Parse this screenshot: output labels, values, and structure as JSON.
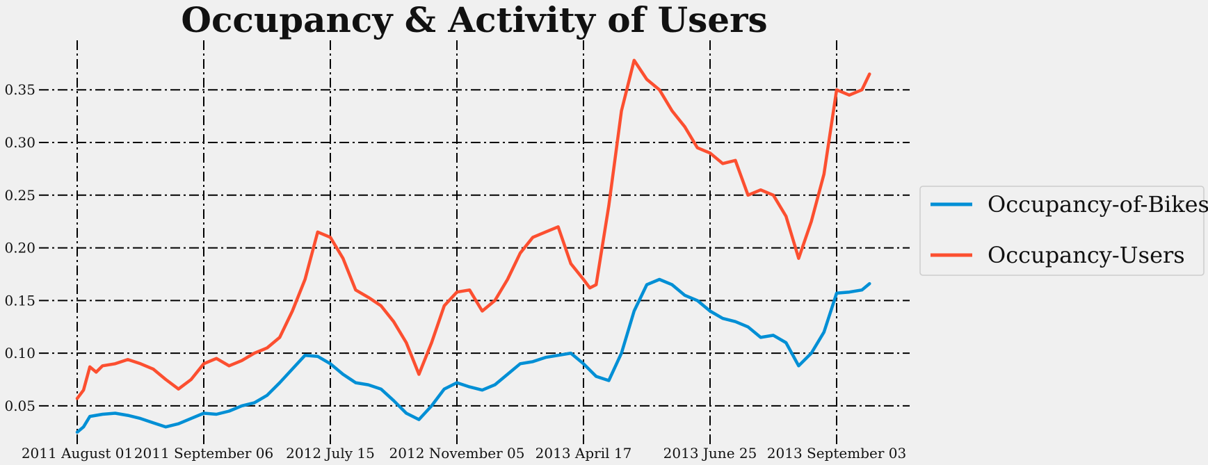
{
  "chart_data": {
    "type": "line",
    "title": "Occupancy & Activity of Users",
    "xlabel": "",
    "ylabel": "",
    "x_ticks": [
      "2011 August 01",
      "2011 September 06",
      "2012 July 15",
      "2012 November 05",
      "2013 April 17",
      "2013 June 25",
      "2013 September 03"
    ],
    "x_range": [
      0,
      6.26
    ],
    "ylim": [
      0.013,
      0.397
    ],
    "y_ticks": [
      0.05,
      0.1,
      0.15,
      0.2,
      0.25,
      0.3,
      0.35
    ],
    "y_tick_labels": [
      "0.05",
      "0.10",
      "0.15",
      "0.20",
      "0.25",
      "0.30",
      "0.35"
    ],
    "grid": true,
    "legend_position": "right",
    "series": [
      {
        "name": "Occupancy-of-Bikes",
        "color": "#008fd5",
        "x": [
          0,
          0.05,
          0.1,
          0.2,
          0.3,
          0.4,
          0.5,
          0.6,
          0.7,
          0.8,
          0.9,
          1.0,
          1.1,
          1.2,
          1.3,
          1.4,
          1.5,
          1.6,
          1.7,
          1.8,
          1.9,
          2.0,
          2.1,
          2.2,
          2.3,
          2.4,
          2.5,
          2.6,
          2.7,
          2.8,
          2.9,
          3.0,
          3.1,
          3.2,
          3.3,
          3.4,
          3.5,
          3.6,
          3.7,
          3.8,
          3.9,
          4.0,
          4.1,
          4.2,
          4.3,
          4.4,
          4.5,
          4.6,
          4.7,
          4.8,
          4.9,
          5.0,
          5.1,
          5.2,
          5.3,
          5.4,
          5.5,
          5.6,
          5.7,
          5.8,
          5.9,
          6.0,
          6.1,
          6.2,
          6.26
        ],
        "values": [
          0.025,
          0.03,
          0.04,
          0.042,
          0.043,
          0.041,
          0.038,
          0.034,
          0.03,
          0.033,
          0.038,
          0.043,
          0.042,
          0.045,
          0.05,
          0.053,
          0.06,
          0.072,
          0.085,
          0.098,
          0.097,
          0.09,
          0.08,
          0.072,
          0.07,
          0.066,
          0.055,
          0.043,
          0.037,
          0.05,
          0.066,
          0.072,
          0.068,
          0.065,
          0.07,
          0.08,
          0.09,
          0.092,
          0.096,
          0.098,
          0.1,
          0.09,
          0.078,
          0.074,
          0.1,
          0.14,
          0.165,
          0.17,
          0.165,
          0.155,
          0.15,
          0.14,
          0.133,
          0.13,
          0.125,
          0.115,
          0.117,
          0.11,
          0.088,
          0.1,
          0.12,
          0.157,
          0.158,
          0.16,
          0.166
        ]
      },
      {
        "name": "Occupancy-Users",
        "color": "#fc4f30",
        "x": [
          0,
          0.05,
          0.1,
          0.15,
          0.2,
          0.3,
          0.4,
          0.5,
          0.6,
          0.7,
          0.8,
          0.9,
          1.0,
          1.1,
          1.2,
          1.3,
          1.4,
          1.5,
          1.6,
          1.7,
          1.8,
          1.9,
          2.0,
          2.1,
          2.2,
          2.3,
          2.4,
          2.5,
          2.6,
          2.7,
          2.8,
          2.9,
          3.0,
          3.1,
          3.2,
          3.3,
          3.4,
          3.5,
          3.6,
          3.7,
          3.8,
          3.9,
          4.0,
          4.05,
          4.1,
          4.2,
          4.3,
          4.4,
          4.5,
          4.6,
          4.7,
          4.8,
          4.9,
          5.0,
          5.1,
          5.2,
          5.3,
          5.4,
          5.5,
          5.6,
          5.7,
          5.8,
          5.9,
          6.0,
          6.1,
          6.2,
          6.26
        ],
        "values": [
          0.057,
          0.065,
          0.087,
          0.082,
          0.088,
          0.09,
          0.094,
          0.09,
          0.085,
          0.075,
          0.066,
          0.075,
          0.09,
          0.095,
          0.088,
          0.093,
          0.1,
          0.105,
          0.115,
          0.14,
          0.17,
          0.215,
          0.21,
          0.19,
          0.16,
          0.153,
          0.145,
          0.13,
          0.11,
          0.08,
          0.11,
          0.145,
          0.158,
          0.16,
          0.14,
          0.15,
          0.17,
          0.195,
          0.21,
          0.215,
          0.22,
          0.185,
          0.17,
          0.162,
          0.165,
          0.24,
          0.33,
          0.378,
          0.36,
          0.35,
          0.33,
          0.315,
          0.295,
          0.29,
          0.28,
          0.283,
          0.25,
          0.255,
          0.25,
          0.23,
          0.19,
          0.225,
          0.27,
          0.35,
          0.345,
          0.35,
          0.365
        ]
      }
    ]
  }
}
